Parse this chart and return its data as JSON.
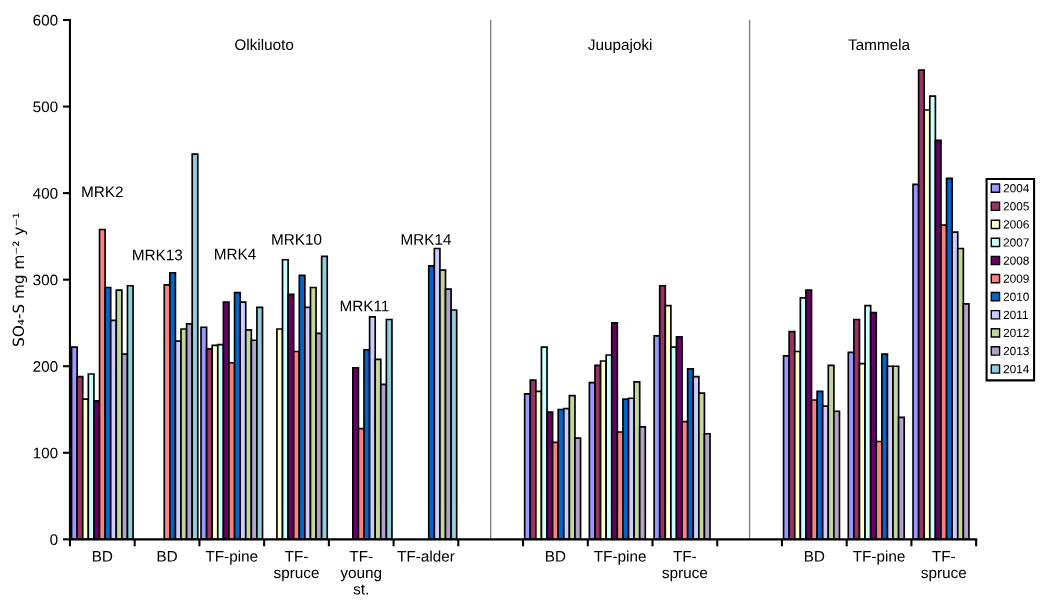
{
  "chart_data": {
    "type": "bar",
    "ylabel": "SO₄-S mg m⁻² y⁻¹",
    "categories": [
      "BD",
      "BD",
      "TF-pine",
      "TF-spruce",
      "TF-young st.",
      "TF-alder",
      null,
      "BD",
      "TF-pine",
      "TF-spruce",
      null,
      "BD",
      "TF-pine",
      "TF-spruce"
    ],
    "ylim": [
      0,
      600
    ],
    "yticks": [
      0,
      100,
      200,
      300,
      400,
      500,
      600
    ],
    "legend": "right",
    "series": [
      {
        "name": "2004",
        "color": "#9999ff",
        "values": [
          222,
          null,
          245,
          null,
          null,
          null,
          null,
          168,
          181,
          235,
          null,
          212,
          216,
          410
        ]
      },
      {
        "name": "2005",
        "color": "#993366",
        "values": [
          188,
          null,
          220,
          null,
          null,
          null,
          null,
          184,
          201,
          293,
          null,
          240,
          254,
          542
        ]
      },
      {
        "name": "2006",
        "color": "#ffffcc",
        "values": [
          162,
          null,
          224,
          243,
          null,
          null,
          null,
          171,
          206,
          270,
          null,
          217,
          203,
          496
        ]
      },
      {
        "name": "2007",
        "color": "#ccffff",
        "values": [
          191,
          null,
          225,
          323,
          null,
          null,
          null,
          222,
          213,
          222,
          null,
          279,
          270,
          512
        ]
      },
      {
        "name": "2008",
        "color": "#660066",
        "values": [
          160,
          null,
          274,
          283,
          198,
          null,
          null,
          147,
          250,
          234,
          null,
          288,
          262,
          461
        ]
      },
      {
        "name": "2009",
        "color": "#ff8080",
        "values": [
          358,
          294,
          204,
          217,
          128,
          null,
          null,
          112,
          124,
          136,
          null,
          161,
          113,
          363
        ]
      },
      {
        "name": "2010",
        "color": "#0066cc",
        "values": [
          291,
          308,
          285,
          305,
          219,
          316,
          null,
          150,
          162,
          197,
          null,
          171,
          214,
          417
        ]
      },
      {
        "name": "2011",
        "color": "#ccccff",
        "values": [
          253,
          229,
          274,
          268,
          257,
          336,
          null,
          151,
          163,
          188,
          null,
          154,
          200,
          355
        ]
      },
      {
        "name": "2012",
        "color": "#c3d69b",
        "values": [
          288,
          243,
          242,
          291,
          208,
          311,
          null,
          166,
          182,
          169,
          null,
          201,
          200,
          336
        ]
      },
      {
        "name": "2013",
        "color": "#b3a2c7",
        "values": [
          214,
          249,
          230,
          238,
          179,
          289,
          null,
          117,
          130,
          122,
          null,
          148,
          141,
          272
        ]
      },
      {
        "name": "2014",
        "color": "#93cddd",
        "values": [
          293,
          445,
          268,
          327,
          254,
          265,
          null,
          null,
          null,
          null,
          null,
          null,
          null,
          null
        ]
      }
    ],
    "annotations": [
      "Olkiluoto",
      "Juupajoki",
      "Tammela",
      "MRK2",
      "MRK13",
      "MRK4",
      "MRK10",
      "MRK11",
      "MRK14"
    ]
  }
}
